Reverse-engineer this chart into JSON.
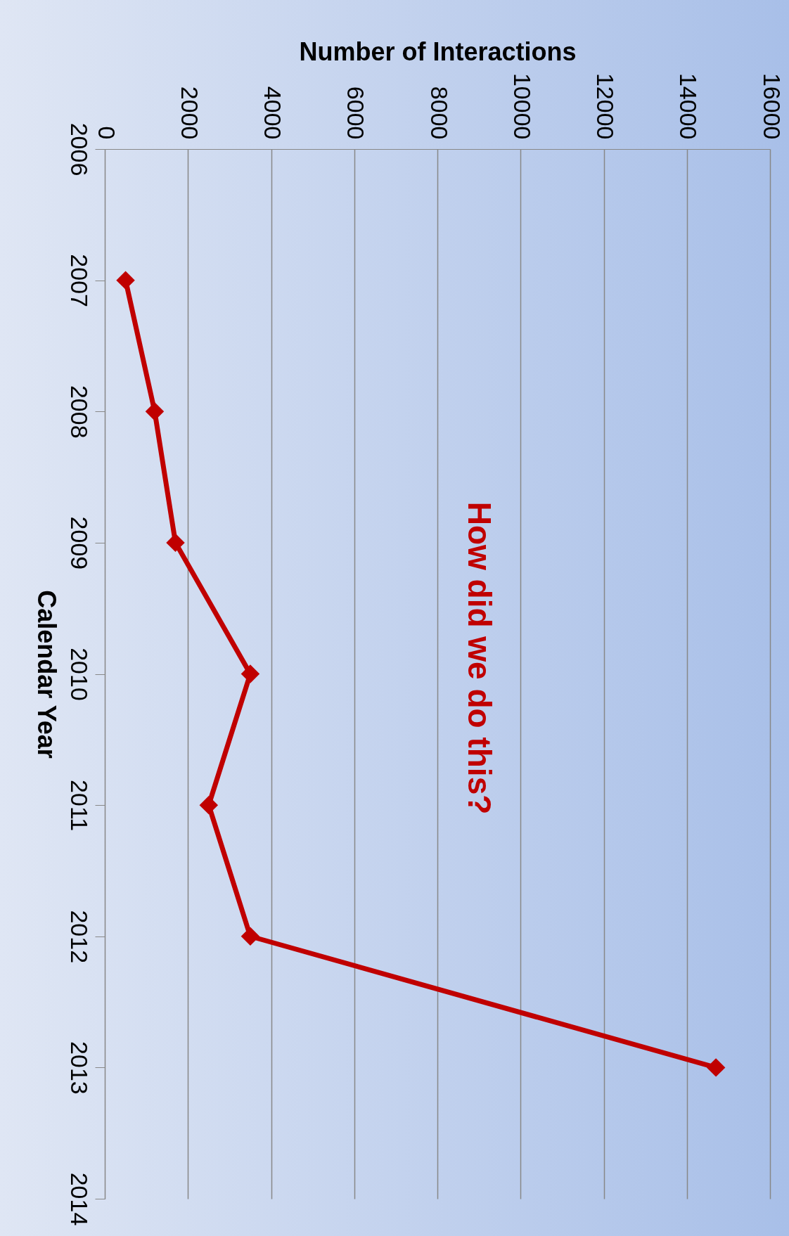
{
  "chart_data": {
    "type": "line",
    "xlabel": "Number of Interactions",
    "ylabel": "Calendar Year",
    "x": [
      500,
      1200,
      1700,
      3500,
      2500,
      3500,
      14700
    ],
    "series": [
      {
        "color": "#c00000",
        "values": [
          2007,
          2008,
          2009,
          2010,
          2011,
          2012,
          2013
        ]
      }
    ],
    "xlim": [
      0,
      16000
    ],
    "xticks": [
      0,
      2000,
      4000,
      6000,
      8000,
      10000,
      12000,
      14000,
      16000
    ],
    "ylim": [
      2014,
      2006
    ],
    "yticks": [
      2006,
      2007,
      2008,
      2009,
      2010,
      2011,
      2012,
      2013,
      2014
    ],
    "grid": "x",
    "marker": "diamond",
    "line_style": "solid",
    "annotations": [
      "How did we do this?"
    ]
  }
}
